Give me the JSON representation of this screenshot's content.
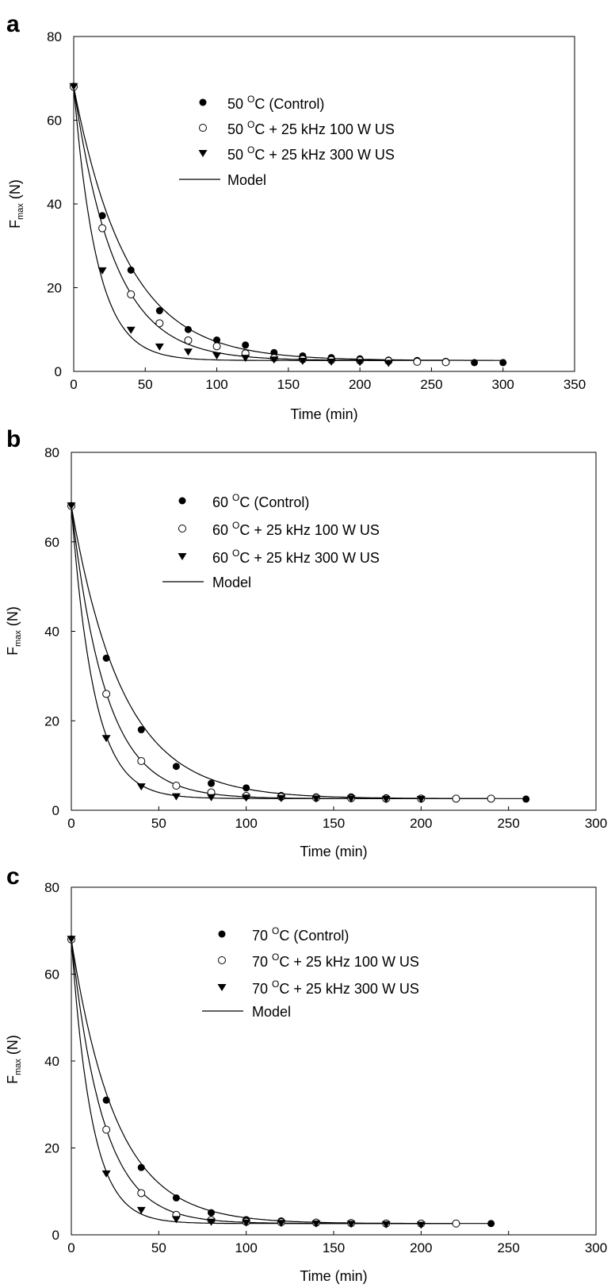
{
  "chart_data": [
    {
      "type": "scatter",
      "panel_label": "a",
      "xlabel": "Time (min)",
      "ylabel_main": "F",
      "ylabel_sub": "max",
      "ylabel_unit": " (N)",
      "xlim": [
        0,
        350
      ],
      "ylim": [
        0,
        80
      ],
      "xticks": [
        0,
        50,
        100,
        150,
        200,
        250,
        300,
        350
      ],
      "yticks": [
        0,
        20,
        40,
        60,
        80
      ],
      "legend": {
        "position": "top-center",
        "model_label": "Model",
        "entries": [
          {
            "marker": "filled-circle",
            "temp": "50 ",
            "sup": "O",
            "rest": "C (Control)"
          },
          {
            "marker": "open-circle",
            "temp": "50 ",
            "sup": "O",
            "rest": "C + 25 kHz 100 W US"
          },
          {
            "marker": "filled-triangle",
            "temp": "50 ",
            "sup": "O",
            "rest": "C + 25 kHz 300 W US"
          }
        ]
      },
      "series": [
        {
          "name": "50 OC (Control)",
          "marker": "filled-circle",
          "x": [
            0,
            20,
            40,
            60,
            80,
            100,
            120,
            140,
            160,
            180,
            200,
            220,
            240,
            260,
            280,
            300
          ],
          "y": [
            68,
            37.2,
            24.2,
            14.5,
            10,
            7.5,
            6.3,
            4.5,
            3.7,
            3.3,
            3,
            2.7,
            2.6,
            2.4,
            2.1,
            2.1
          ],
          "model": {
            "y0": 68,
            "yinf": 2.6,
            "k": 0.0268,
            "xmax": 300
          }
        },
        {
          "name": "50 OC + 25 kHz 100 W US",
          "marker": "open-circle",
          "x": [
            0,
            20,
            40,
            60,
            80,
            100,
            120,
            140,
            160,
            180,
            200,
            220,
            240,
            260
          ],
          "y": [
            68,
            34.2,
            18.4,
            11.5,
            7.4,
            6,
            4.3,
            3.2,
            2.9,
            2.7,
            2.6,
            2.5,
            2.3,
            2.2
          ],
          "model": {
            "y0": 68,
            "yinf": 2.6,
            "k": 0.0353,
            "xmax": 260
          }
        },
        {
          "name": "50 OC + 25 kHz 300 W US",
          "marker": "filled-triangle",
          "x": [
            0,
            20,
            40,
            60,
            80,
            100,
            120,
            140,
            160,
            180,
            200,
            220
          ],
          "y": [
            68,
            24,
            9.8,
            5.8,
            4.6,
            3.7,
            3.1,
            2.7,
            2.4,
            2.2,
            2.1,
            1.9
          ],
          "model": {
            "y0": 68,
            "yinf": 2.6,
            "k": 0.0613,
            "xmax": 220
          }
        }
      ]
    },
    {
      "type": "scatter",
      "panel_label": "b",
      "xlabel": "Time (min)",
      "ylabel_main": "F",
      "ylabel_sub": "max",
      "ylabel_unit": " (N)",
      "xlim": [
        0,
        300
      ],
      "ylim": [
        0,
        80
      ],
      "xticks": [
        0,
        50,
        100,
        150,
        200,
        250,
        300
      ],
      "yticks": [
        0,
        20,
        40,
        60,
        80
      ],
      "legend": {
        "position": "top-center",
        "model_label": "Model",
        "entries": [
          {
            "marker": "filled-circle",
            "temp": "60 ",
            "sup": "O",
            "rest": "C (Control)"
          },
          {
            "marker": "open-circle",
            "temp": "60 ",
            "sup": "O",
            "rest": "C + 25 kHz 100 W US"
          },
          {
            "marker": "filled-triangle",
            "temp": "60 ",
            "sup": "O",
            "rest": "C + 25 kHz 300 W US"
          }
        ]
      },
      "series": [
        {
          "name": "60 OC (Control)",
          "marker": "filled-circle",
          "x": [
            0,
            20,
            40,
            60,
            80,
            100,
            120,
            140,
            160,
            180,
            200,
            260
          ],
          "y": [
            68,
            34,
            18,
            9.8,
            6,
            5,
            3.3,
            3,
            3,
            2.8,
            2.7,
            2.5
          ],
          "model": {
            "y0": 68,
            "yinf": 2.6,
            "k": 0.034,
            "xmax": 260
          }
        },
        {
          "name": "60 OC + 25 kHz 100 W US",
          "marker": "open-circle",
          "x": [
            0,
            20,
            40,
            60,
            80,
            100,
            120,
            140,
            160,
            180,
            200,
            220,
            240
          ],
          "y": [
            68,
            26,
            11,
            5.5,
            4,
            3.2,
            3,
            2.8,
            2.7,
            2.6,
            2.6,
            2.6,
            2.6
          ],
          "model": {
            "y0": 68,
            "yinf": 2.6,
            "k": 0.051,
            "xmax": 240
          }
        },
        {
          "name": "60 OC + 25 kHz 300 W US",
          "marker": "filled-triangle",
          "x": [
            0,
            20,
            40,
            60,
            80,
            100,
            120,
            140,
            160,
            180,
            200
          ],
          "y": [
            68,
            16,
            5.2,
            3,
            2.8,
            2.7,
            2.6,
            2.5,
            2.5,
            2.4,
            2.4
          ],
          "model": {
            "y0": 68,
            "yinf": 2.6,
            "k": 0.077,
            "xmax": 200
          }
        }
      ]
    },
    {
      "type": "scatter",
      "panel_label": "c",
      "xlabel": "Time (min)",
      "ylabel_main": "F",
      "ylabel_sub": "max",
      "ylabel_unit": " (N)",
      "xlim": [
        0,
        300
      ],
      "ylim": [
        0,
        80
      ],
      "xticks": [
        0,
        50,
        100,
        150,
        200,
        250,
        300
      ],
      "yticks": [
        0,
        20,
        40,
        60,
        80
      ],
      "legend": {
        "position": "top-center",
        "model_label": "Model",
        "entries": [
          {
            "marker": "filled-circle",
            "temp": "70 ",
            "sup": "O",
            "rest": "C (Control)"
          },
          {
            "marker": "open-circle",
            "temp": "70 ",
            "sup": "O",
            "rest": "C + 25 kHz 100 W US"
          },
          {
            "marker": "filled-triangle",
            "temp": "70 ",
            "sup": "O",
            "rest": "C + 25 kHz 300 W US"
          }
        ]
      },
      "series": [
        {
          "name": "70 OC (Control)",
          "marker": "filled-circle",
          "x": [
            0,
            20,
            40,
            60,
            80,
            100,
            120,
            140,
            160,
            180,
            200,
            240
          ],
          "y": [
            68,
            31,
            15.5,
            8.5,
            5.1,
            3.5,
            3.2,
            2.9,
            2.8,
            2.7,
            2.6,
            2.6
          ],
          "model": {
            "y0": 68,
            "yinf": 2.6,
            "k": 0.039,
            "xmax": 240
          }
        },
        {
          "name": "70 OC + 25 kHz 100 W US",
          "marker": "open-circle",
          "x": [
            0,
            20,
            40,
            60,
            80,
            100,
            120,
            140,
            160,
            180,
            200,
            220
          ],
          "y": [
            68,
            24.2,
            9.6,
            4.6,
            3.4,
            3,
            2.9,
            2.8,
            2.7,
            2.6,
            2.6,
            2.6
          ],
          "model": {
            "y0": 68,
            "yinf": 2.6,
            "k": 0.055,
            "xmax": 220
          }
        },
        {
          "name": "70 OC + 25 kHz 300 W US",
          "marker": "filled-triangle",
          "x": [
            0,
            20,
            40,
            60,
            80,
            100,
            120,
            140,
            160,
            180,
            200
          ],
          "y": [
            68,
            14,
            5.6,
            3.5,
            2.9,
            2.7,
            2.6,
            2.5,
            2.4,
            2.3,
            2.2
          ],
          "model": {
            "y0": 68,
            "yinf": 2.6,
            "k": 0.085,
            "xmax": 200
          }
        }
      ]
    }
  ]
}
